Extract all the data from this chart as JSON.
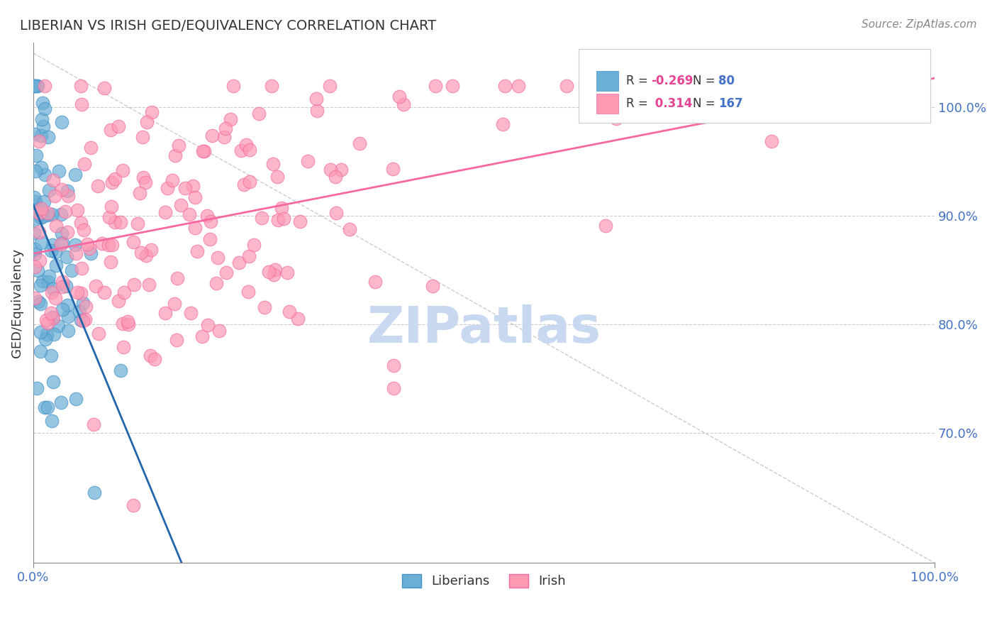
{
  "title": "LIBERIAN VS IRISH GED/EQUIVALENCY CORRELATION CHART",
  "source": "Source: ZipAtlas.com",
  "ylabel": "GED/Equivalency",
  "ytick_values": [
    0.7,
    0.8,
    0.9,
    1.0
  ],
  "xlim": [
    0.0,
    1.0
  ],
  "ylim": [
    0.58,
    1.06
  ],
  "liberian_R": -0.269,
  "liberian_N": 80,
  "irish_R": 0.314,
  "irish_N": 167,
  "liberian_color": "#6baed6",
  "liberian_edge": "#4292c6",
  "irish_color": "#fc9ab4",
  "irish_edge": "#f768a1",
  "trend_liberian_color": "#2166ac",
  "trend_irish_color": "#f768a1",
  "background_color": "#ffffff",
  "grid_color": "#cccccc",
  "title_color": "#333333",
  "axis_label_color": "#4472c4",
  "legend_R_color": "#e84393",
  "legend_N_color": "#4472c4",
  "watermark_color": "#c8d8f0",
  "watermark_text": "ZIPatlas"
}
